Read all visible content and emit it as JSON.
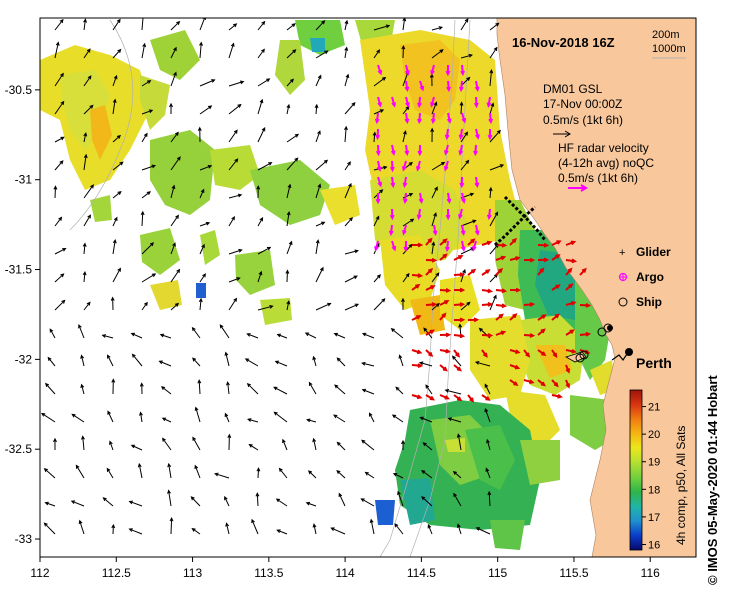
{
  "map": {
    "title": "16-Nov-2018 16Z",
    "depth_legend": [
      "200m",
      "1000m"
    ],
    "model": {
      "name": "DM01 GSL",
      "time": "17-Nov 00:00Z",
      "scale": "0.5m/s (1kt 6h)"
    },
    "hf_radar": {
      "label_1": "HF radar velocity",
      "label_2": "(4-12h avg) noQC",
      "scale": "0.5m/s (1kt 6h)"
    },
    "legend": [
      {
        "label": "Glider",
        "color": "#ff00ff",
        "symbol": "plus"
      },
      {
        "label": "Argo",
        "color": "#ff00ff",
        "symbol": "star"
      },
      {
        "label": "Ship",
        "color": "#000000",
        "symbol": "circle"
      }
    ],
    "city": "Perth",
    "x_axis": {
      "ticks": [
        "112",
        "112.5",
        "113",
        "113.5",
        "114",
        "114.5",
        "115",
        "115.5",
        "116"
      ],
      "values": [
        112,
        112.5,
        113,
        113.5,
        114,
        114.5,
        115,
        115.5,
        116
      ],
      "range": [
        112,
        116.3
      ]
    },
    "y_axis": {
      "ticks": [
        "-30.5",
        "-31",
        "-31.5",
        "-32",
        "-32.5",
        "-33"
      ],
      "values": [
        -30.5,
        -31,
        -31.5,
        -32,
        -32.5,
        -33
      ],
      "range": [
        -33.1,
        -30.1
      ]
    },
    "colorbar": {
      "ticks": [
        "21",
        "20",
        "19",
        "18",
        "17",
        "16"
      ],
      "values": [
        21,
        20,
        19,
        18,
        17,
        16
      ],
      "range": [
        15.8,
        21.6
      ],
      "label": "4h comp, p50, All Sats",
      "colors": [
        "#08086e",
        "#0a3cc8",
        "#1f8fcf",
        "#21b5a8",
        "#2eb34a",
        "#6fd03c",
        "#b6e032",
        "#ede61a",
        "#f5b512",
        "#f07a10",
        "#d83410",
        "#a0140a"
      ]
    },
    "credit": "©  IMOS 05-May-2020 01:44 Hobart"
  }
}
